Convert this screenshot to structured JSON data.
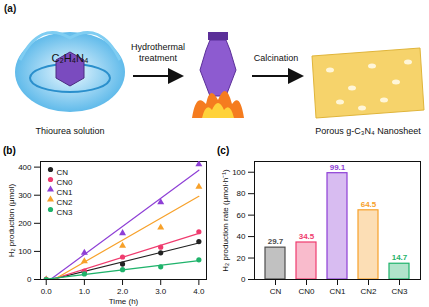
{
  "panel_a": {
    "label": "(a)",
    "molecule": "C₂H₄N₄",
    "steps": [
      "Thiourea solution",
      "Hydrothermal treatment",
      "Calcination",
      "Porous g-C₃N₄ Nanosheet"
    ]
  },
  "chart_data": [
    {
      "type": "line",
      "title": "(b)",
      "xlabel": "Time (h)",
      "ylabel": "H₂ production (μmol)",
      "x": [
        0,
        1,
        2,
        3,
        4
      ],
      "series": [
        {
          "name": "CN",
          "color": "#222222",
          "marker": "circle",
          "values": [
            0,
            28,
            55,
            95,
            135
          ]
        },
        {
          "name": "CN0",
          "color": "#ef3b6e",
          "marker": "circle",
          "values": [
            0,
            30,
            80,
            115,
            170
          ]
        },
        {
          "name": "CN1",
          "color": "#8e3fd6",
          "marker": "triangle",
          "values": [
            0,
            95,
            165,
            275,
            410
          ]
        },
        {
          "name": "CN2",
          "color": "#f7a12a",
          "marker": "triangle",
          "values": [
            0,
            65,
            120,
            185,
            330
          ]
        },
        {
          "name": "CN3",
          "color": "#1fb36b",
          "marker": "circle",
          "values": [
            0,
            20,
            35,
            45,
            70
          ]
        }
      ],
      "xlim": [
        -0.15,
        4.2
      ],
      "xticks": [
        0,
        1,
        2,
        3,
        4
      ],
      "ylim": [
        0,
        420
      ],
      "yticks": [
        0,
        100,
        200,
        300,
        400
      ],
      "legend": "upper left"
    },
    {
      "type": "bar",
      "title": "(c)",
      "ylabel": "H₂ production rate (μmol·h⁻¹)",
      "categories": [
        "CN",
        "CN0",
        "CN1",
        "CN2",
        "CN3"
      ],
      "values": [
        29.7,
        34.5,
        99.1,
        64.5,
        14.7
      ],
      "colors": [
        "#4d4d4d",
        "#ef3b6e",
        "#8e3fd6",
        "#f7a12a",
        "#1fb36b"
      ],
      "ylim": [
        0,
        110
      ],
      "yticks": [
        0,
        20,
        40,
        60,
        80,
        100
      ],
      "data_labels": true
    }
  ]
}
